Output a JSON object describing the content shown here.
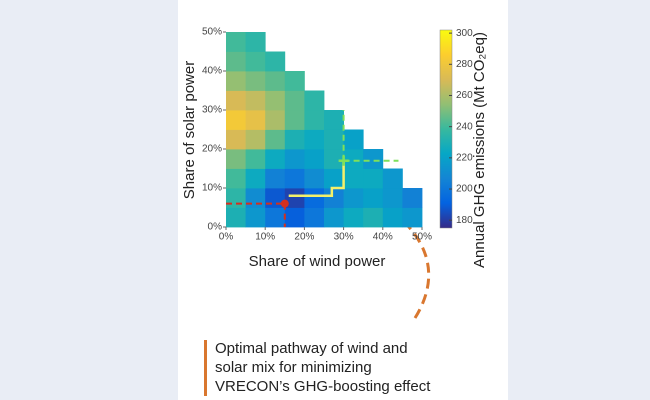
{
  "chart_data": {
    "type": "heatmap",
    "x_label": "Share of wind power",
    "y_label": "Share of solar power",
    "colorbar_label": "Annual GHG emissions (Mt CO₂eq)",
    "xlim": [
      0,
      50
    ],
    "ylim": [
      0,
      50
    ],
    "xticks": [
      {
        "value": 0,
        "label": "0%"
      },
      {
        "value": 10,
        "label": "10%"
      },
      {
        "value": 20,
        "label": "20%"
      },
      {
        "value": 30,
        "label": "30%"
      },
      {
        "value": 40,
        "label": "40%"
      },
      {
        "value": 50,
        "label": "50%"
      }
    ],
    "yticks": [
      {
        "value": 0,
        "label": "0%"
      },
      {
        "value": 10,
        "label": "10%"
      },
      {
        "value": 20,
        "label": "20%"
      },
      {
        "value": 30,
        "label": "30%"
      },
      {
        "value": 40,
        "label": "40%"
      },
      {
        "value": 50,
        "label": "50%"
      }
    ],
    "x": [
      0,
      5,
      10,
      15,
      20,
      25,
      30,
      35,
      40,
      45
    ],
    "y": [
      0,
      5,
      10,
      15,
      20,
      25,
      30,
      35,
      40,
      45
    ],
    "z": [
      [
        230,
        215,
        200,
        190,
        200,
        215,
        225,
        230,
        220,
        215
      ],
      [
        235,
        210,
        188,
        182,
        195,
        205,
        215,
        220,
        215,
        205
      ],
      [
        240,
        225,
        205,
        200,
        210,
        220,
        225,
        225,
        215,
        null
      ],
      [
        250,
        240,
        225,
        215,
        220,
        230,
        225,
        215,
        null,
        null
      ],
      [
        270,
        262,
        245,
        230,
        225,
        230,
        220,
        null,
        null,
        null
      ],
      [
        282,
        276,
        260,
        245,
        235,
        230,
        null,
        null,
        null,
        null
      ],
      [
        270,
        265,
        255,
        245,
        235,
        null,
        null,
        null,
        null,
        null
      ],
      [
        255,
        250,
        245,
        240,
        null,
        null,
        null,
        null,
        null,
        null
      ],
      [
        245,
        240,
        235,
        null,
        null,
        null,
        null,
        null,
        null,
        null
      ],
      [
        240,
        235,
        null,
        null,
        null,
        null,
        null,
        null,
        null,
        null
      ]
    ],
    "colormap": "parula",
    "zlim": [
      175,
      302
    ],
    "zticks": [
      180,
      200,
      220,
      240,
      260,
      280,
      300
    ],
    "pathway": {
      "color": "#f4f06a",
      "x": [
        16,
        27,
        27,
        30,
        30
      ],
      "y": [
        8,
        8,
        10,
        10,
        17
      ]
    },
    "points": [
      {
        "color": "#d4301e",
        "x": 15,
        "y": 6
      },
      {
        "color": "#7ee05a",
        "x": 30,
        "y": 17
      }
    ],
    "caption": [
      "Optimal pathway of wind and",
      "solar mix for minimizing",
      "VRECON’s GHG-boosting effect"
    ]
  }
}
